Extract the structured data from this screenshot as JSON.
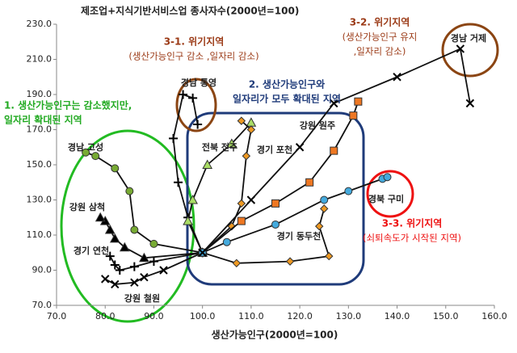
{
  "chart_data": {
    "type": "trajectory",
    "title": "제조업+지식기반서비스업 종사자수(2000년=100)",
    "x_label": "생산가능인구(2000년=100)",
    "xlim": [
      70,
      160
    ],
    "ylim": [
      70,
      230
    ],
    "xticks": [
      {
        "value": 70,
        "label": "70.0"
      },
      {
        "value": 80,
        "label": "80.0"
      },
      {
        "value": 90,
        "label": "90.0"
      },
      {
        "value": 100,
        "label": "100.0"
      },
      {
        "value": 110,
        "label": "110.0"
      },
      {
        "value": 120,
        "label": "120.0"
      },
      {
        "value": 130,
        "label": "130.0"
      },
      {
        "value": 140,
        "label": "140.0"
      },
      {
        "value": 150,
        "label": "150.0"
      },
      {
        "value": 160,
        "label": "160.0"
      }
    ],
    "yticks": [
      {
        "value": 70,
        "label": "70.0"
      },
      {
        "value": 90,
        "label": "90.0"
      },
      {
        "value": 110,
        "label": "110.0"
      },
      {
        "value": 130,
        "label": "130.0"
      },
      {
        "value": 150,
        "label": "150.0"
      },
      {
        "value": 170,
        "label": "170.0"
      },
      {
        "value": 190,
        "label": "190.0"
      },
      {
        "value": 210,
        "label": "210.0"
      },
      {
        "value": 230,
        "label": "230.0"
      }
    ],
    "series": [
      {
        "name": "경남 고성",
        "color": "#77aa33",
        "marker": "circle",
        "x": [
          100,
          90,
          86,
          85,
          82,
          78,
          76
        ],
        "y": [
          100,
          105,
          113,
          135,
          148,
          155,
          157
        ]
      },
      {
        "name": "강원 삼척",
        "color": "#000000",
        "marker": "triangle",
        "x": [
          100,
          88,
          84,
          82,
          81,
          80,
          79
        ],
        "y": [
          100,
          97,
          103,
          108,
          113,
          118,
          120
        ]
      },
      {
        "name": "경기 연천",
        "color": "#000000",
        "marker": "plus",
        "x": [
          100,
          90,
          86,
          83,
          82,
          81
        ],
        "y": [
          100,
          95,
          92,
          90,
          93,
          98
        ]
      },
      {
        "name": "강원 철원",
        "color": "#000000",
        "marker": "x",
        "x": [
          100,
          92,
          88,
          86,
          82,
          80
        ],
        "y": [
          100,
          90,
          86,
          83,
          82,
          85
        ]
      },
      {
        "name": "경남 통영",
        "color": "#000000",
        "marker": "plus",
        "x": [
          100,
          97,
          95,
          94,
          96,
          98,
          99
        ],
        "y": [
          100,
          120,
          140,
          165,
          190,
          188,
          173
        ]
      },
      {
        "name": "전북 전주",
        "color": "#aadd66",
        "marker": "triangle",
        "x": [
          100,
          97,
          98,
          101,
          106,
          110
        ],
        "y": [
          100,
          118,
          130,
          150,
          162,
          174
        ]
      },
      {
        "name": "경기 포천",
        "color": "#ee9922",
        "marker": "diamond",
        "x": [
          100,
          106,
          108,
          109,
          110,
          108
        ],
        "y": [
          100,
          115,
          128,
          155,
          170,
          175
        ]
      },
      {
        "name": "강원 원주",
        "color": "#ee7722",
        "marker": "square",
        "x": [
          100,
          108,
          115,
          122,
          127,
          131,
          132
        ],
        "y": [
          100,
          118,
          128,
          140,
          158,
          178,
          186
        ]
      },
      {
        "name": "경기 동두천",
        "color": "#ee9922",
        "marker": "diamond",
        "x": [
          100,
          107,
          118,
          126,
          124,
          125
        ],
        "y": [
          100,
          94,
          95,
          98,
          115,
          125
        ]
      },
      {
        "name": "경북 구미",
        "color": "#44aadd",
        "marker": "circle",
        "x": [
          100,
          105,
          115,
          125,
          130,
          137,
          138
        ],
        "y": [
          100,
          106,
          116,
          130,
          135,
          142,
          143
        ]
      },
      {
        "name": "경남 거제",
        "color": "#000000",
        "marker": "x",
        "x": [
          100,
          110,
          120,
          127,
          140,
          153,
          155
        ],
        "y": [
          100,
          130,
          160,
          185,
          200,
          216,
          185
        ]
      }
    ],
    "annotations": [
      {
        "lines": [
          "1. 생산가능인구는 감소했지만,",
          "일자리 확대된 지역"
        ],
        "color": "#22aa22"
      },
      {
        "lines": [
          "2. 생산가능인구와",
          "일자리가 모두 확대된 지역"
        ],
        "color": "#1f3b7a"
      },
      {
        "lines": [
          "3-1. 위기지역",
          "(생산가능인구 감소 ,일자리 감소)"
        ],
        "color": "#9b3a16"
      },
      {
        "lines": [
          "3-2. 위기지역",
          "(생산가능인구 유지",
          ",일자리 감소)"
        ],
        "color": "#9b3a16"
      },
      {
        "lines": [
          "3-3. 위기지역",
          "(쇠퇴속도가 시작된 지역)"
        ],
        "color": "#ee1111"
      }
    ]
  }
}
